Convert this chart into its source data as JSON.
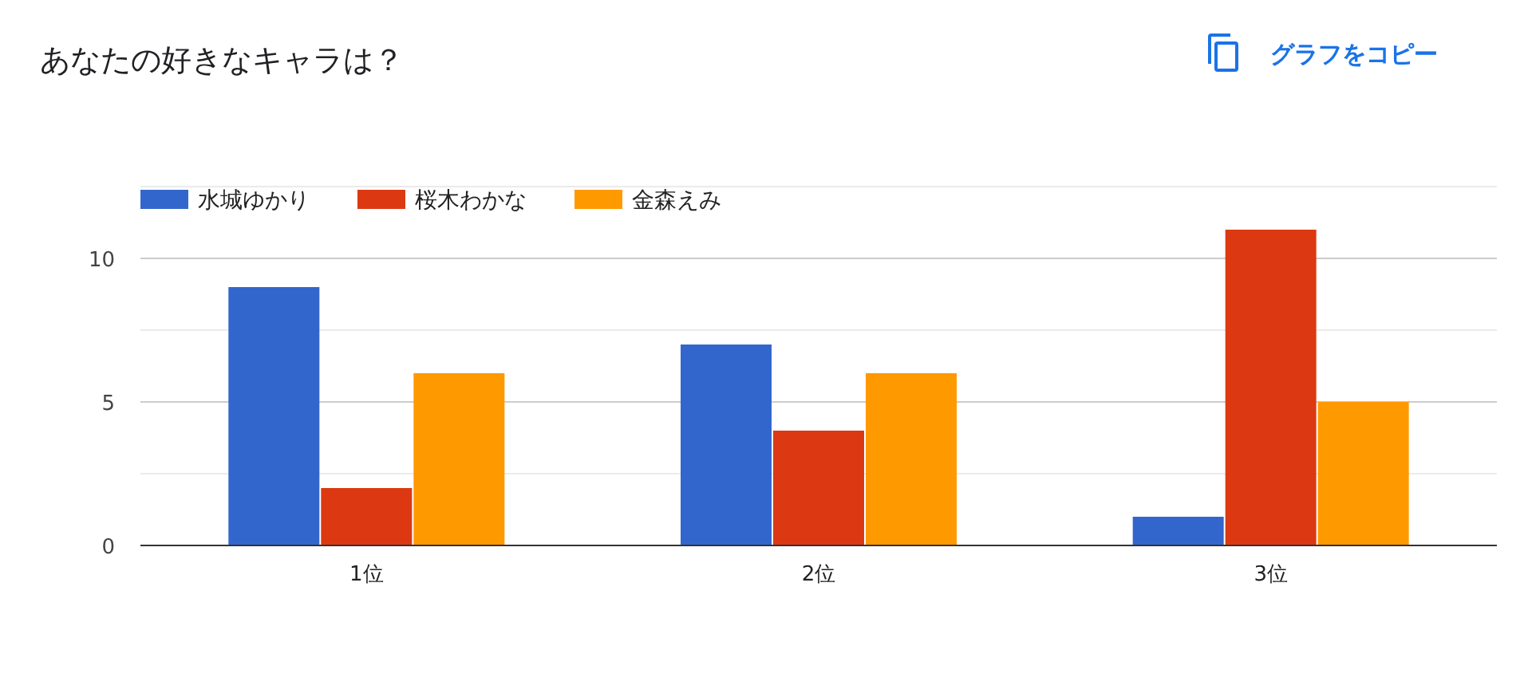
{
  "chart_data": {
    "type": "bar",
    "title": "あなたの好きなキャラは？",
    "annotations": [
      "グラフをコピー"
    ],
    "categories": [
      "1位",
      "2位",
      "3位"
    ],
    "series": [
      {
        "name": "水城ゆかり",
        "color": "#3366cc",
        "values": [
          9,
          7,
          1
        ]
      },
      {
        "name": "桜木わかな",
        "color": "#dc3912",
        "values": [
          2,
          4,
          11
        ]
      },
      {
        "name": "金森えみ",
        "color": "#ff9900",
        "values": [
          6,
          6,
          5
        ]
      }
    ],
    "ylim": [
      0,
      12.5
    ],
    "yticks": [
      0,
      {
        "value": 2.5,
        "label": null
      },
      5,
      {
        "value": 7.5,
        "label": null
      },
      10,
      {
        "value": 12.5,
        "label": null
      }
    ],
    "grid": true,
    "legend": "top left"
  }
}
